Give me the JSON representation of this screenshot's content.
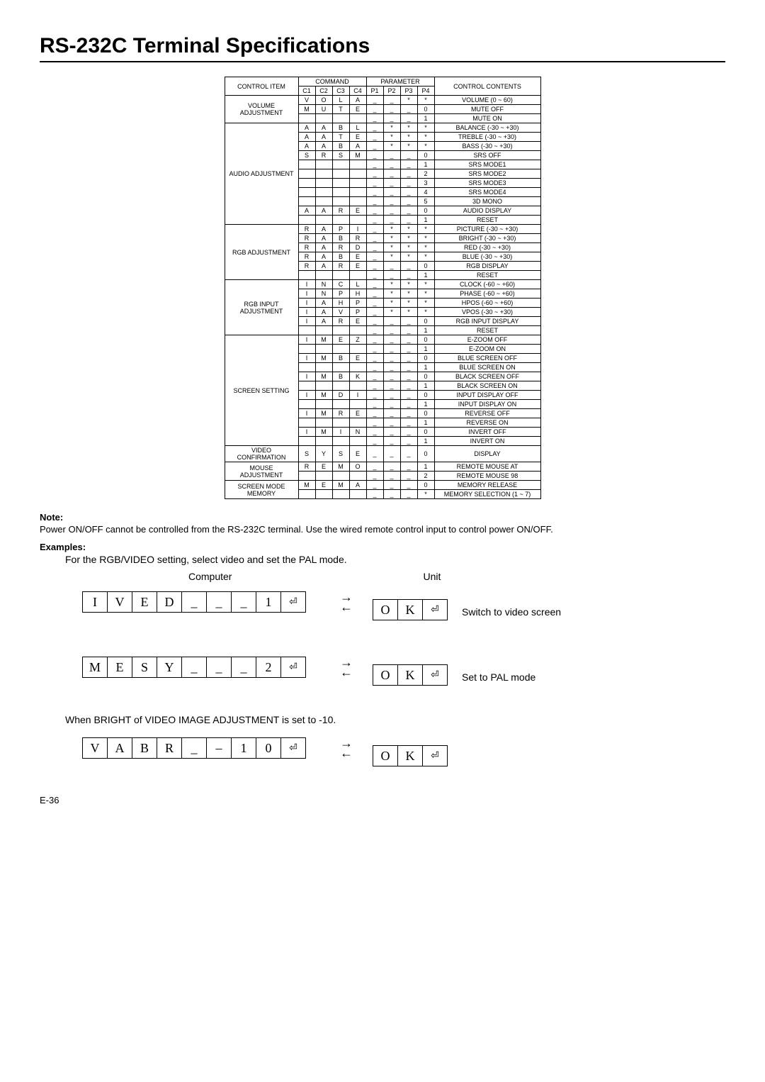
{
  "title": "RS-232C Terminal Specifications",
  "table": {
    "headers": {
      "control_item": "CONTROL ITEM",
      "command": "COMMAND",
      "parameter": "PARAMETER",
      "control_contents": "CONTROL CONTENTS",
      "c": [
        "C1",
        "C2",
        "C3",
        "C4"
      ],
      "p": [
        "P1",
        "P2",
        "P3",
        "P4"
      ]
    },
    "groups": [
      {
        "item": "VOLUME ADJUSTMENT",
        "rows": [
          {
            "c": [
              "V",
              "O",
              "L",
              "A"
            ],
            "p": [
              "_",
              "_",
              "*",
              "*"
            ],
            "content": "VOLUME (0 ~ 60)"
          },
          {
            "c": [
              "M",
              "U",
              "T",
              "E"
            ],
            "p": [
              "_",
              "_",
              "_",
              "0"
            ],
            "content": "MUTE OFF"
          },
          {
            "c": [
              "",
              "",
              "",
              ""
            ],
            "p": [
              "_",
              "_",
              "_",
              "1"
            ],
            "content": "MUTE ON"
          }
        ]
      },
      {
        "item": "AUDIO ADJUSTMENT",
        "rows": [
          {
            "c": [
              "A",
              "A",
              "B",
              "L"
            ],
            "p": [
              "_",
              "*",
              "*",
              "*"
            ],
            "content": "BALANCE (-30 ~ +30)"
          },
          {
            "c": [
              "A",
              "A",
              "T",
              "E"
            ],
            "p": [
              "_",
              "*",
              "*",
              "*"
            ],
            "content": "TREBLE (-30 ~ +30)"
          },
          {
            "c": [
              "A",
              "A",
              "B",
              "A"
            ],
            "p": [
              "_",
              "*",
              "*",
              "*"
            ],
            "content": "BASS (-30 ~ +30)"
          },
          {
            "c": [
              "S",
              "R",
              "S",
              "M"
            ],
            "p": [
              "_",
              "_",
              "_",
              "0"
            ],
            "content": "SRS OFF"
          },
          {
            "c": [
              "",
              "",
              "",
              ""
            ],
            "p": [
              "_",
              "_",
              "_",
              "1"
            ],
            "content": "SRS MODE1"
          },
          {
            "c": [
              "",
              "",
              "",
              ""
            ],
            "p": [
              "_",
              "_",
              "_",
              "2"
            ],
            "content": "SRS MODE2"
          },
          {
            "c": [
              "",
              "",
              "",
              ""
            ],
            "p": [
              "_",
              "_",
              "_",
              "3"
            ],
            "content": "SRS MODE3"
          },
          {
            "c": [
              "",
              "",
              "",
              ""
            ],
            "p": [
              "_",
              "_",
              "_",
              "4"
            ],
            "content": "SRS MODE4"
          },
          {
            "c": [
              "",
              "",
              "",
              ""
            ],
            "p": [
              "_",
              "_",
              "_",
              "5"
            ],
            "content": "3D MONO"
          },
          {
            "c": [
              "A",
              "A",
              "R",
              "E"
            ],
            "p": [
              "_",
              "_",
              "_",
              "0"
            ],
            "content": "AUDIO DISPLAY"
          },
          {
            "c": [
              "",
              "",
              "",
              ""
            ],
            "p": [
              "_",
              "_",
              "_",
              "1"
            ],
            "content": "RESET"
          }
        ]
      },
      {
        "item": "RGB ADJUSTMENT",
        "rows": [
          {
            "c": [
              "R",
              "A",
              "P",
              "I"
            ],
            "p": [
              "_",
              "*",
              "*",
              "*"
            ],
            "content": "PICTURE (-30 ~ +30)"
          },
          {
            "c": [
              "R",
              "A",
              "B",
              "R"
            ],
            "p": [
              "_",
              "*",
              "*",
              "*"
            ],
            "content": "BRIGHT (-30 ~ +30)"
          },
          {
            "c": [
              "R",
              "A",
              "R",
              "D"
            ],
            "p": [
              "_",
              "*",
              "*",
              "*"
            ],
            "content": "RED (-30 ~ +30)"
          },
          {
            "c": [
              "R",
              "A",
              "B",
              "E"
            ],
            "p": [
              "_",
              "*",
              "*",
              "*"
            ],
            "content": "BLUE (-30 ~ +30)"
          },
          {
            "c": [
              "R",
              "A",
              "R",
              "E"
            ],
            "p": [
              "_",
              "_",
              "_",
              "0"
            ],
            "content": "RGB DISPLAY"
          },
          {
            "c": [
              "",
              "",
              "",
              ""
            ],
            "p": [
              "_",
              "_",
              "_",
              "1"
            ],
            "content": "RESET"
          }
        ]
      },
      {
        "item": "RGB INPUT ADJUSTMENT",
        "rows": [
          {
            "c": [
              "I",
              "N",
              "C",
              "L"
            ],
            "p": [
              "_",
              "*",
              "*",
              "*"
            ],
            "content": "CLOCK (-60 ~ +60)"
          },
          {
            "c": [
              "I",
              "N",
              "P",
              "H"
            ],
            "p": [
              "_",
              "*",
              "*",
              "*"
            ],
            "content": "PHASE (-60 ~ +60)"
          },
          {
            "c": [
              "I",
              "A",
              "H",
              "P"
            ],
            "p": [
              "_",
              "*",
              "*",
              "*"
            ],
            "content": "HPOS (-60 ~ +60)"
          },
          {
            "c": [
              "I",
              "A",
              "V",
              "P"
            ],
            "p": [
              "_",
              "*",
              "*",
              "*"
            ],
            "content": "VPOS (-30 ~ +30)"
          },
          {
            "c": [
              "I",
              "A",
              "R",
              "E"
            ],
            "p": [
              "_",
              "_",
              "_",
              "0"
            ],
            "content": "RGB INPUT DISPLAY"
          },
          {
            "c": [
              "",
              "",
              "",
              ""
            ],
            "p": [
              "_",
              "_",
              "_",
              "1"
            ],
            "content": "RESET"
          }
        ]
      },
      {
        "item": "SCREEN SETTING",
        "rows": [
          {
            "c": [
              "I",
              "M",
              "E",
              "Z"
            ],
            "p": [
              "_",
              "_",
              "_",
              "0"
            ],
            "content": "E-ZOOM OFF"
          },
          {
            "c": [
              "",
              "",
              "",
              ""
            ],
            "p": [
              "_",
              "_",
              "_",
              "1"
            ],
            "content": "E-ZOOM ON"
          },
          {
            "c": [
              "I",
              "M",
              "B",
              "E"
            ],
            "p": [
              "_",
              "_",
              "_",
              "0"
            ],
            "content": "BLUE SCREEN OFF"
          },
          {
            "c": [
              "",
              "",
              "",
              ""
            ],
            "p": [
              "_",
              "_",
              "_",
              "1"
            ],
            "content": "BLUE SCREEN ON"
          },
          {
            "c": [
              "I",
              "M",
              "B",
              "K"
            ],
            "p": [
              "_",
              "_",
              "_",
              "0"
            ],
            "content": "BLACK SCREEN OFF"
          },
          {
            "c": [
              "",
              "",
              "",
              ""
            ],
            "p": [
              "_",
              "_",
              "_",
              "1"
            ],
            "content": "BLACK SCREEN ON"
          },
          {
            "c": [
              "I",
              "M",
              "D",
              "I"
            ],
            "p": [
              "_",
              "_",
              "_",
              "0"
            ],
            "content": "INPUT DISPLAY OFF"
          },
          {
            "c": [
              "",
              "",
              "",
              ""
            ],
            "p": [
              "_",
              "_",
              "_",
              "1"
            ],
            "content": "INPUT DISPLAY ON"
          },
          {
            "c": [
              "I",
              "M",
              "R",
              "E"
            ],
            "p": [
              "_",
              "_",
              "_",
              "0"
            ],
            "content": "REVERSE OFF"
          },
          {
            "c": [
              "",
              "",
              "",
              ""
            ],
            "p": [
              "_",
              "_",
              "_",
              "1"
            ],
            "content": "REVERSE ON"
          },
          {
            "c": [
              "I",
              "M",
              "I",
              "N"
            ],
            "p": [
              "_",
              "_",
              "_",
              "0"
            ],
            "content": "INVERT OFF"
          },
          {
            "c": [
              "",
              "",
              "",
              ""
            ],
            "p": [
              "_",
              "_",
              "_",
              "1"
            ],
            "content": "INVERT ON"
          }
        ]
      },
      {
        "item": "VIDEO CONFIRMATION",
        "rows": [
          {
            "c": [
              "S",
              "Y",
              "S",
              "E"
            ],
            "p": [
              "_",
              "_",
              "_",
              "0"
            ],
            "content": "DISPLAY"
          }
        ]
      },
      {
        "item": "MOUSE ADJUSTMENT",
        "rows": [
          {
            "c": [
              "R",
              "E",
              "M",
              "O"
            ],
            "p": [
              "_",
              "_",
              "_",
              "1"
            ],
            "content": "REMOTE MOUSE AT"
          },
          {
            "c": [
              "",
              "",
              "",
              ""
            ],
            "p": [
              "_",
              "_",
              "_",
              "2"
            ],
            "content": "REMOTE MOUSE 98"
          }
        ]
      },
      {
        "item": "SCREEN MODE MEMORY",
        "rows": [
          {
            "c": [
              "M",
              "E",
              "M",
              "A"
            ],
            "p": [
              "_",
              "_",
              "_",
              "0"
            ],
            "content": "MEMORY RELEASE"
          },
          {
            "c": [
              "",
              "",
              "",
              ""
            ],
            "p": [
              "_",
              "_",
              "_",
              "*"
            ],
            "content": "MEMORY SELECTION (1 ~ 7)"
          }
        ]
      }
    ]
  },
  "note": {
    "head": "Note:",
    "body": "Power ON/OFF cannot be controlled from the RS-232C terminal. Use the wired remote control input to control power ON/OFF."
  },
  "examples": {
    "head": "Examples:",
    "intro": "For the RGB/VIDEO setting, select video and set the PAL mode.",
    "labels": {
      "computer": "Computer",
      "unit": "Unit"
    },
    "rows": [
      {
        "cmd": [
          "I",
          "V",
          "E",
          "D",
          "_",
          "_",
          "_",
          "1",
          "⏎"
        ],
        "ok": [
          "O",
          "K",
          "⏎"
        ],
        "desc": "Switch to video screen"
      },
      {
        "cmd": [
          "M",
          "E",
          "S",
          "Y",
          "_",
          "_",
          "_",
          "2",
          "⏎"
        ],
        "ok": [
          "O",
          "K",
          "⏎"
        ],
        "desc": "Set to PAL mode"
      }
    ],
    "line2": "When BRIGHT of VIDEO IMAGE ADJUSTMENT is set to -10.",
    "row3": {
      "cmd": [
        "V",
        "A",
        "B",
        "R",
        "_",
        "–",
        "1",
        "0",
        "⏎"
      ],
      "ok": [
        "O",
        "K",
        "⏎"
      ]
    },
    "arrows": {
      "right": "→",
      "left": "←"
    }
  },
  "page": "E-36"
}
